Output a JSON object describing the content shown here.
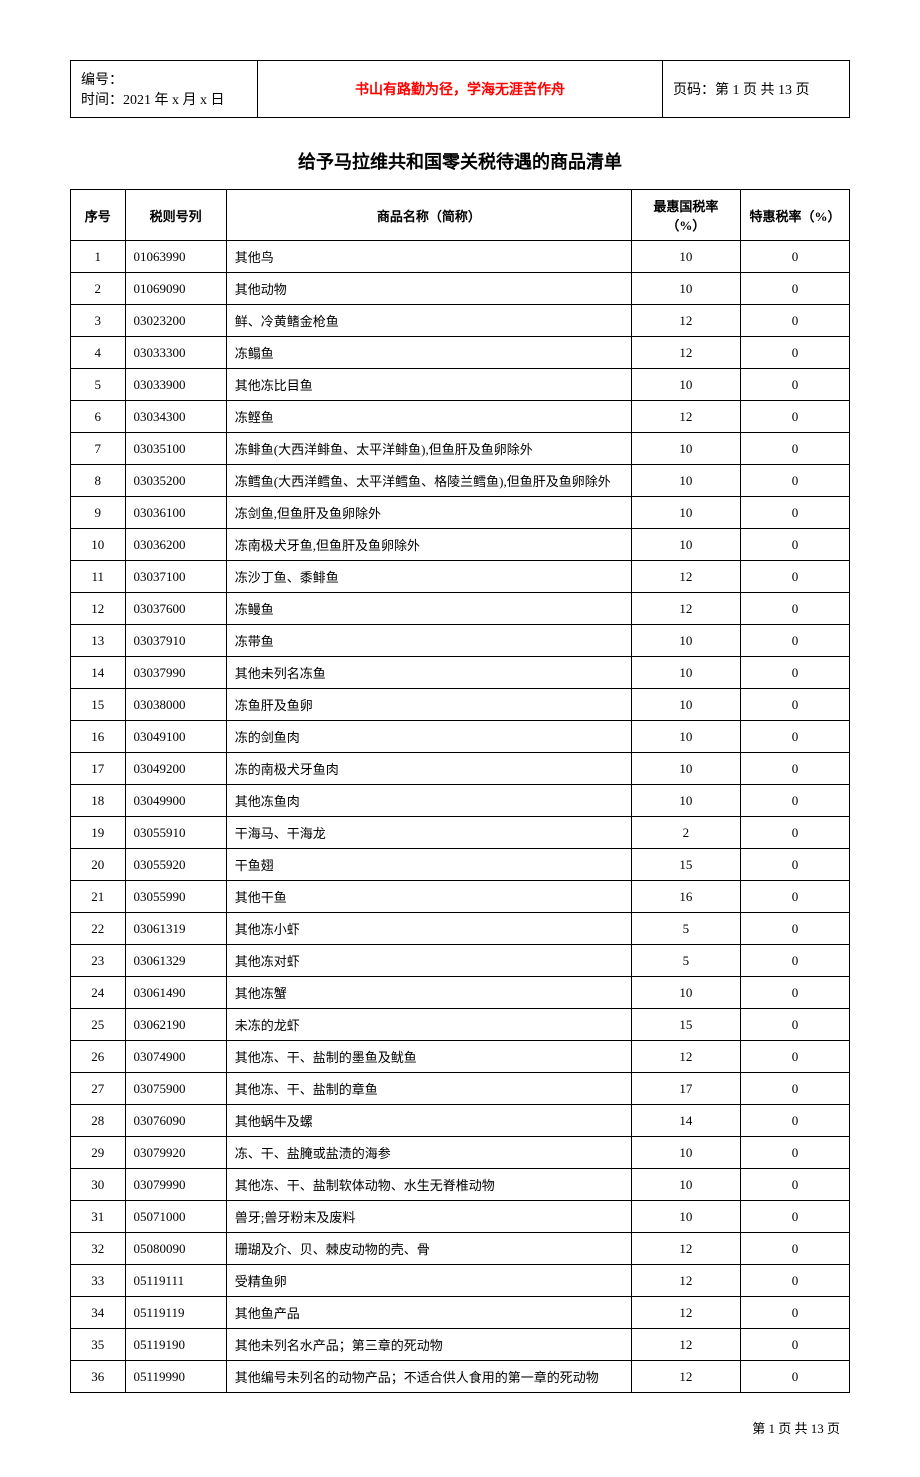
{
  "header": {
    "id_label": "编号：",
    "time_label": "时间：2021 年 x 月 x 日",
    "center_text": "书山有路勤为径，学海无涯苦作舟",
    "page_label": "页码：第 1 页 共 13 页"
  },
  "title": "给予马拉维共和国零关税待遇的商品清单",
  "table": {
    "headers": {
      "seq": "序号",
      "code": "税则号列",
      "name": "商品名称（简称）",
      "rate1": "最惠国税率（%）",
      "rate2": "特惠税率（%）"
    },
    "rows": [
      {
        "seq": "1",
        "code": "01063990",
        "name": "其他鸟",
        "rate1": "10",
        "rate2": "0"
      },
      {
        "seq": "2",
        "code": "01069090",
        "name": "其他动物",
        "rate1": "10",
        "rate2": "0"
      },
      {
        "seq": "3",
        "code": "03023200",
        "name": "鲜、冷黄鳍金枪鱼",
        "rate1": "12",
        "rate2": "0"
      },
      {
        "seq": "4",
        "code": "03033300",
        "name": "冻鳎鱼",
        "rate1": "12",
        "rate2": "0"
      },
      {
        "seq": "5",
        "code": "03033900",
        "name": "其他冻比目鱼",
        "rate1": "10",
        "rate2": "0"
      },
      {
        "seq": "6",
        "code": "03034300",
        "name": "冻鲣鱼",
        "rate1": "12",
        "rate2": "0"
      },
      {
        "seq": "7",
        "code": "03035100",
        "name": "冻鲱鱼(大西洋鲱鱼、太平洋鲱鱼),但鱼肝及鱼卵除外",
        "rate1": "10",
        "rate2": "0"
      },
      {
        "seq": "8",
        "code": "03035200",
        "name": "冻鳕鱼(大西洋鳕鱼、太平洋鳕鱼、格陵兰鳕鱼),但鱼肝及鱼卵除外",
        "rate1": "10",
        "rate2": "0"
      },
      {
        "seq": "9",
        "code": "03036100",
        "name": "冻剑鱼,但鱼肝及鱼卵除外",
        "rate1": "10",
        "rate2": "0"
      },
      {
        "seq": "10",
        "code": "03036200",
        "name": "冻南极犬牙鱼,但鱼肝及鱼卵除外",
        "rate1": "10",
        "rate2": "0"
      },
      {
        "seq": "11",
        "code": "03037100",
        "name": "冻沙丁鱼、黍鲱鱼",
        "rate1": "12",
        "rate2": "0"
      },
      {
        "seq": "12",
        "code": "03037600",
        "name": "冻鳗鱼",
        "rate1": "12",
        "rate2": "0"
      },
      {
        "seq": "13",
        "code": "03037910",
        "name": "冻带鱼",
        "rate1": "10",
        "rate2": "0"
      },
      {
        "seq": "14",
        "code": "03037990",
        "name": "其他未列名冻鱼",
        "rate1": "10",
        "rate2": "0"
      },
      {
        "seq": "15",
        "code": "03038000",
        "name": "冻鱼肝及鱼卵",
        "rate1": "10",
        "rate2": "0"
      },
      {
        "seq": "16",
        "code": "03049100",
        "name": "冻的剑鱼肉",
        "rate1": "10",
        "rate2": "0"
      },
      {
        "seq": "17",
        "code": "03049200",
        "name": "冻的南极犬牙鱼肉",
        "rate1": "10",
        "rate2": "0"
      },
      {
        "seq": "18",
        "code": "03049900",
        "name": "其他冻鱼肉",
        "rate1": "10",
        "rate2": "0"
      },
      {
        "seq": "19",
        "code": "03055910",
        "name": "干海马、干海龙",
        "rate1": "2",
        "rate2": "0"
      },
      {
        "seq": "20",
        "code": "03055920",
        "name": "干鱼翅",
        "rate1": "15",
        "rate2": "0"
      },
      {
        "seq": "21",
        "code": "03055990",
        "name": "其他干鱼",
        "rate1": "16",
        "rate2": "0"
      },
      {
        "seq": "22",
        "code": "03061319",
        "name": "其他冻小虾",
        "rate1": "5",
        "rate2": "0"
      },
      {
        "seq": "23",
        "code": "03061329",
        "name": "其他冻对虾",
        "rate1": "5",
        "rate2": "0"
      },
      {
        "seq": "24",
        "code": "03061490",
        "name": "其他冻蟹",
        "rate1": "10",
        "rate2": "0"
      },
      {
        "seq": "25",
        "code": "03062190",
        "name": "未冻的龙虾",
        "rate1": "15",
        "rate2": "0"
      },
      {
        "seq": "26",
        "code": "03074900",
        "name": "其他冻、干、盐制的墨鱼及鱿鱼",
        "rate1": "12",
        "rate2": "0"
      },
      {
        "seq": "27",
        "code": "03075900",
        "name": "其他冻、干、盐制的章鱼",
        "rate1": "17",
        "rate2": "0"
      },
      {
        "seq": "28",
        "code": "03076090",
        "name": "其他蜗牛及螺",
        "rate1": "14",
        "rate2": "0"
      },
      {
        "seq": "29",
        "code": "03079920",
        "name": "冻、干、盐腌或盐渍的海参",
        "rate1": "10",
        "rate2": "0"
      },
      {
        "seq": "30",
        "code": "03079990",
        "name": "其他冻、干、盐制软体动物、水生无脊椎动物",
        "rate1": "10",
        "rate2": "0"
      },
      {
        "seq": "31",
        "code": "05071000",
        "name": "兽牙;兽牙粉末及废料",
        "rate1": "10",
        "rate2": "0"
      },
      {
        "seq": "32",
        "code": "05080090",
        "name": "珊瑚及介、贝、棘皮动物的壳、骨",
        "rate1": "12",
        "rate2": "0"
      },
      {
        "seq": "33",
        "code": "05119111",
        "name": "受精鱼卵",
        "rate1": "12",
        "rate2": "0"
      },
      {
        "seq": "34",
        "code": "05119119",
        "name": "其他鱼产品",
        "rate1": "12",
        "rate2": "0"
      },
      {
        "seq": "35",
        "code": "05119190",
        "name": "其他未列名水产品；第三章的死动物",
        "rate1": "12",
        "rate2": "0"
      },
      {
        "seq": "36",
        "code": "05119990",
        "name": "其他编号未列名的动物产品；不适合供人食用的第一章的死动物",
        "rate1": "12",
        "rate2": "0"
      }
    ]
  },
  "footer": "第 1 页 共 13 页"
}
